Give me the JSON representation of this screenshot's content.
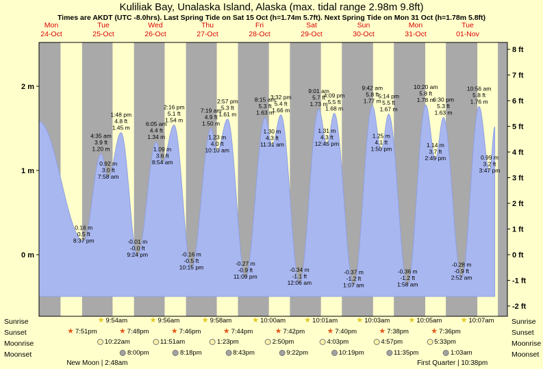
{
  "chart_data": {
    "type": "area",
    "title": "Kuliliak Bay, Unalaska Island, Alaska (max. tidal range 2.98m 9.8ft)",
    "subtitle": "Times are AKDT (UTC -8.0hrs). Last Spring Tide on Sat 15 Oct (h=1.74m 5.7ft). Next Spring Tide on Mon 31 Oct (h=1.78m 5.8ft)",
    "y_left_ticks": [
      "2 m",
      "1 m",
      "0 m"
    ],
    "y_right_ticks": [
      "8 ft",
      "7 ft",
      "6 ft",
      "5 ft",
      "4 ft",
      "3 ft",
      "2 ft",
      "1 ft",
      "0 ft",
      "-1 ft",
      "-2 ft"
    ],
    "ylim_m": [
      -0.73,
      2.52
    ],
    "days": [
      {
        "name": "Mon",
        "date": "24-Oct"
      },
      {
        "name": "Tue",
        "date": "25-Oct"
      },
      {
        "name": "Wed",
        "date": "26-Oct"
      },
      {
        "name": "Thu",
        "date": "27-Oct"
      },
      {
        "name": "Fri",
        "date": "28-Oct"
      },
      {
        "name": "Sat",
        "date": "29-Oct"
      },
      {
        "name": "Sun",
        "date": "30-Oct"
      },
      {
        "name": "Mon",
        "date": "31-Oct"
      },
      {
        "name": "Tue",
        "date": "01-Nov"
      }
    ],
    "tide_events": [
      {
        "kind": "anchor",
        "day": 0,
        "h": 0.0,
        "m": 1.58
      },
      {
        "kind": "low",
        "day": 0,
        "time": "8:37 pm",
        "m": 0.16,
        "ft": "0.5 ft"
      },
      {
        "kind": "high",
        "day": 1,
        "time": "4:35 am",
        "m": 1.2,
        "ft": "3.9 ft"
      },
      {
        "kind": "low",
        "day": 1,
        "time": "7:58 am",
        "m": 0.92,
        "ft": "3.0 ft"
      },
      {
        "kind": "high",
        "day": 1,
        "time": "1:48 pm",
        "m": 1.45,
        "ft": "4.8 ft"
      },
      {
        "kind": "low",
        "day": 1,
        "time": "9:24 pm",
        "m": -0.01,
        "ft": "-0.0 ft"
      },
      {
        "kind": "high",
        "day": 2,
        "time": "6:05 am",
        "m": 1.34,
        "ft": "4.4 ft"
      },
      {
        "kind": "low",
        "day": 2,
        "time": "8:54 am",
        "m": 1.09,
        "ft": "3.6 ft"
      },
      {
        "kind": "high",
        "day": 2,
        "time": "2:16 pm",
        "m": 1.54,
        "ft": "5.1 ft"
      },
      {
        "kind": "low",
        "day": 2,
        "time": "10:15 pm",
        "m": -0.16,
        "ft": "-0.5 ft"
      },
      {
        "kind": "high",
        "day": 3,
        "time": "7:19 am",
        "m": 1.5,
        "ft": "4.9 ft"
      },
      {
        "kind": "low",
        "day": 3,
        "time": "10:10 am",
        "m": 1.23,
        "ft": "4.0 ft"
      },
      {
        "kind": "high",
        "day": 3,
        "time": "2:57 pm",
        "m": 1.61,
        "ft": "5.3 ft"
      },
      {
        "kind": "low",
        "day": 3,
        "time": "11:09 pm",
        "m": -0.27,
        "ft": "-0.9 ft"
      },
      {
        "kind": "high",
        "day": 4,
        "time": "8:15 am",
        "m": 1.63,
        "ft": "5.3 ft"
      },
      {
        "kind": "low",
        "day": 4,
        "time": "11:31 am",
        "m": 1.3,
        "ft": "4.3 ft"
      },
      {
        "kind": "high",
        "day": 4,
        "time": "3:32 pm",
        "m": 1.66,
        "ft": "5.4 ft"
      },
      {
        "kind": "low",
        "day": 5,
        "time": "12:06 am",
        "m": -0.34,
        "ft": "-1.1 ft"
      },
      {
        "kind": "high",
        "day": 5,
        "time": "9:01 am",
        "m": 1.73,
        "ft": "5.7 ft"
      },
      {
        "kind": "low",
        "day": 5,
        "time": "12:45 pm",
        "m": 1.31,
        "ft": "4.3 ft"
      },
      {
        "kind": "high",
        "day": 5,
        "time": "4:09 pm",
        "m": 1.68,
        "ft": "5.5 ft"
      },
      {
        "kind": "low",
        "day": 6,
        "time": "1:07 am",
        "m": -0.37,
        "ft": "-1.2 ft"
      },
      {
        "kind": "high",
        "day": 6,
        "time": "9:42 am",
        "m": 1.77,
        "ft": "5.8 ft"
      },
      {
        "kind": "low",
        "day": 6,
        "time": "1:50 pm",
        "m": 1.25,
        "ft": "4.1 ft"
      },
      {
        "kind": "high",
        "day": 6,
        "time": "5:14 pm",
        "m": 1.67,
        "ft": "5.5 ft"
      },
      {
        "kind": "low",
        "day": 7,
        "time": "1:58 am",
        "m": -0.36,
        "ft": "-1.2 ft"
      },
      {
        "kind": "high",
        "day": 7,
        "time": "10:20 am",
        "m": 1.78,
        "ft": "5.8 ft"
      },
      {
        "kind": "low",
        "day": 7,
        "time": "2:49 pm",
        "m": 1.14,
        "ft": "3.7 ft"
      },
      {
        "kind": "high",
        "day": 7,
        "time": "6:30 pm",
        "m": 1.63,
        "ft": "5.3 ft"
      },
      {
        "kind": "low",
        "day": 8,
        "time": "2:52 am",
        "m": -0.28,
        "ft": "-0.9 ft"
      },
      {
        "kind": "high",
        "day": 8,
        "time": "10:56 am",
        "m": 1.76,
        "ft": "5.8 ft"
      },
      {
        "kind": "low",
        "day": 8,
        "time": "3:47 pm",
        "m": 0.99,
        "ft": "3.2 ft"
      },
      {
        "kind": "anchor",
        "day": 8,
        "h": 18.2,
        "m": 1.52
      }
    ],
    "sun_moon": {
      "sunrise": {
        "label": "Sunrise",
        "items": [
          {
            "day": 1,
            "time": "9:54am"
          },
          {
            "day": 2,
            "time": "9:56am"
          },
          {
            "day": 3,
            "time": "9:58am"
          },
          {
            "day": 4,
            "time": "10:00am"
          },
          {
            "day": 5,
            "time": "10:01am"
          },
          {
            "day": 6,
            "time": "10:03am"
          },
          {
            "day": 7,
            "time": "10:05am"
          },
          {
            "day": 8,
            "time": "10:07am"
          }
        ]
      },
      "sunset": {
        "label": "Sunset",
        "items": [
          {
            "day": 0,
            "time": "7:51pm"
          },
          {
            "day": 1,
            "time": "7:48pm"
          },
          {
            "day": 2,
            "time": "7:46pm"
          },
          {
            "day": 3,
            "time": "7:44pm"
          },
          {
            "day": 4,
            "time": "7:42pm"
          },
          {
            "day": 5,
            "time": "7:40pm"
          },
          {
            "day": 6,
            "time": "7:38pm"
          },
          {
            "day": 7,
            "time": "7:36pm"
          }
        ]
      },
      "moonrise": {
        "label": "Moonrise",
        "items": [
          {
            "day": 1,
            "time": "10:22am"
          },
          {
            "day": 2,
            "time": "11:51am"
          },
          {
            "day": 3,
            "time": "1:23pm"
          },
          {
            "day": 4,
            "time": "2:50pm"
          },
          {
            "day": 5,
            "time": "4:03pm"
          },
          {
            "day": 6,
            "time": "4:57pm"
          },
          {
            "day": 7,
            "time": "5:33pm"
          }
        ]
      },
      "moonset": {
        "label": "Moonset",
        "items": [
          {
            "day": 1,
            "time": "8:00pm"
          },
          {
            "day": 2,
            "time": "8:18pm"
          },
          {
            "day": 3,
            "time": "8:43pm"
          },
          {
            "day": 4,
            "time": "9:22pm"
          },
          {
            "day": 5,
            "time": "10:19pm"
          },
          {
            "day": 6,
            "time": "11:35pm"
          },
          {
            "day": 8,
            "time": "1:03am"
          }
        ]
      }
    },
    "moon_phases": [
      {
        "label": "New Moon",
        "time": "2:48am",
        "day": 1
      },
      {
        "label": "First Quarter",
        "time": "10:38pm",
        "day": 7
      }
    ],
    "colors": {
      "page_bg": "#ffffcc",
      "night_band": "#a9a9a9",
      "day_band": "#ffffcc",
      "tide_fill": "#a9b7f0",
      "tide_stroke": "#8fa0e0",
      "day_label": "#dd0000",
      "sunrise_icon": "#e0c820",
      "sunset_icon": "#e8551e",
      "moonrise_icon": "#f8f2a8",
      "moonset_icon": "#a2a2a2"
    }
  }
}
